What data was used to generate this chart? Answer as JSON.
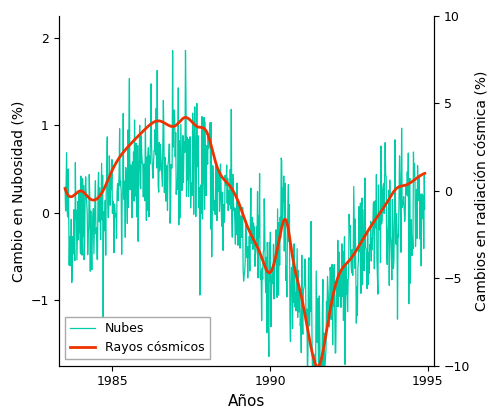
{
  "title": "",
  "xlabel": "Años",
  "ylabel_left": "Cambio en Nubosidad (%)",
  "ylabel_right": "Cambios en radiación cósmica (%)",
  "xlim": [
    1983.3,
    1995.2
  ],
  "ylim_left": [
    -1.75,
    2.25
  ],
  "ylim_right": [
    -10,
    10
  ],
  "xticks": [
    1985,
    1990,
    1995
  ],
  "yticks_left": [
    -1,
    0,
    1,
    2
  ],
  "yticks_right": [
    -10,
    -5,
    0,
    5,
    10
  ],
  "cloud_color": "#00CDA8",
  "cosmic_color": "#EE3300",
  "legend_labels": [
    "Nubes",
    "Rayos cósmicos"
  ],
  "background_color": "#ffffff",
  "cloud_lw": 0.9,
  "cosmic_lw": 2.0
}
